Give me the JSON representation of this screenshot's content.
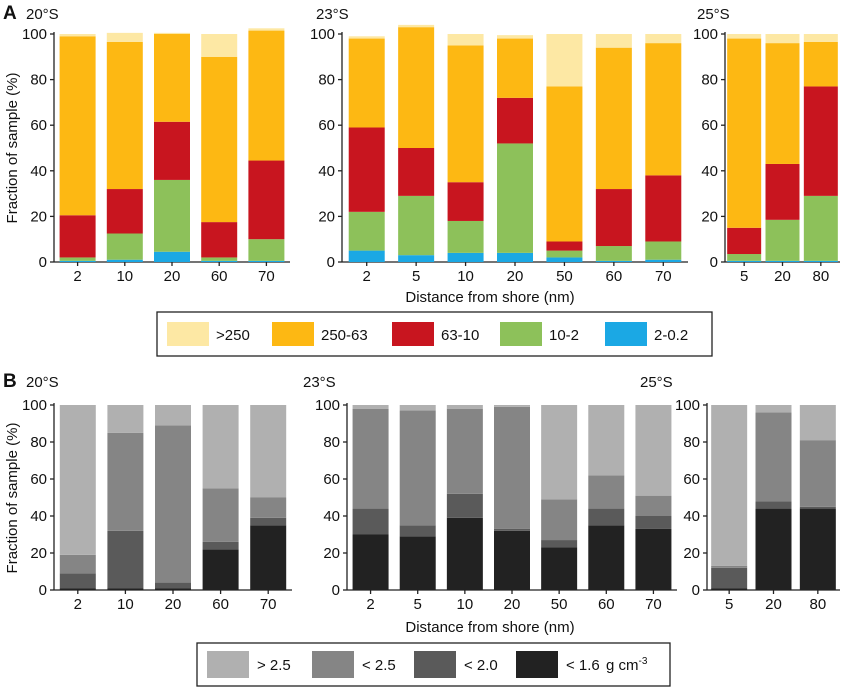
{
  "chart_data": [
    {
      "panel": "A",
      "type": "bar",
      "stacked": true,
      "ylabel": "Fraction of sample (%)",
      "xlabel": "Distance from shore (nm)",
      "ylim": [
        0,
        100
      ],
      "yticks": [
        "0",
        "20",
        "40",
        "60",
        "80",
        "100"
      ],
      "legend": [
        {
          "key": "s250p",
          "label": ">250",
          "color": "#FDE8A4"
        },
        {
          "key": "s250",
          "label": "250-63",
          "color": "#FDB813"
        },
        {
          "key": "s63",
          "label": "63-10",
          "color": "#C8151F"
        },
        {
          "key": "s10",
          "label": "10-2",
          "color": "#8DC15A"
        },
        {
          "key": "s2",
          "label": "2-0.2",
          "color": "#1BA8E4"
        }
      ],
      "subplots": [
        {
          "title": "20°S",
          "categories": [
            "2",
            "10",
            "20",
            "60",
            "70"
          ],
          "series": [
            {
              "name": "2-0.2",
              "values": [
                0.5,
                1,
                4.5,
                0.5,
                0.5
              ]
            },
            {
              "name": "10-2",
              "values": [
                1.5,
                11.5,
                31.5,
                1.5,
                9.5
              ]
            },
            {
              "name": "63-10",
              "values": [
                18.5,
                19.5,
                25.5,
                15.5,
                34.5
              ]
            },
            {
              "name": "250-63",
              "values": [
                78.5,
                64.5,
                38.5,
                72.5,
                57
              ]
            },
            {
              "name": ">250",
              "values": [
                1,
                4,
                0.5,
                10,
                1
              ]
            }
          ]
        },
        {
          "title": "23°S",
          "categories": [
            "2",
            "5",
            "10",
            "20",
            "50",
            "60",
            "70"
          ],
          "series": [
            {
              "name": "2-0.2",
              "values": [
                5,
                3,
                4,
                4,
                2,
                0.5,
                1
              ]
            },
            {
              "name": "10-2",
              "values": [
                17,
                26,
                14,
                48,
                3,
                6.5,
                8
              ]
            },
            {
              "name": "63-10",
              "values": [
                37,
                21,
                17,
                20,
                4,
                25,
                29
              ]
            },
            {
              "name": "250-63",
              "values": [
                39,
                53,
                60,
                26,
                68,
                62,
                58
              ]
            },
            {
              "name": ">250",
              "values": [
                1,
                1,
                5,
                1.5,
                23,
                6,
                4
              ]
            }
          ]
        },
        {
          "title": "25°S",
          "categories": [
            "5",
            "20",
            "80"
          ],
          "series": [
            {
              "name": "2-0.2",
              "values": [
                0.5,
                0.5,
                0.5
              ]
            },
            {
              "name": "10-2",
              "values": [
                3,
                18,
                28.5
              ]
            },
            {
              "name": "63-10",
              "values": [
                11.5,
                24.5,
                48
              ]
            },
            {
              "name": "250-63",
              "values": [
                83,
                53,
                19.5
              ]
            },
            {
              "name": ">250",
              "values": [
                2,
                4,
                3.5
              ]
            }
          ]
        }
      ]
    },
    {
      "panel": "B",
      "type": "bar",
      "stacked": true,
      "ylabel": "Fraction of sample (%)",
      "xlabel": "Distance from shore (nm)",
      "ylim": [
        0,
        100
      ],
      "yticks": [
        "0",
        "20",
        "40",
        "60",
        "80",
        "100"
      ],
      "legend": [
        {
          "key": "d25p",
          "label": "> 2.5",
          "color": "#B0B0B0"
        },
        {
          "key": "d25",
          "label": "< 2.5",
          "color": "#858585"
        },
        {
          "key": "d20",
          "label": "< 2.0",
          "color": "#5A5A5A"
        },
        {
          "key": "d16",
          "label": "< 1.6",
          "color": "#222222"
        }
      ],
      "legend_unit": "g cm",
      "legend_unit_exp": "-3",
      "subplots": [
        {
          "title": "20°S",
          "categories": [
            "2",
            "10",
            "20",
            "60",
            "70"
          ],
          "series": [
            {
              "name": "< 1.6",
              "values": [
                1,
                1,
                1,
                22,
                35
              ]
            },
            {
              "name": "< 2.0",
              "values": [
                8,
                31,
                3,
                4,
                4
              ]
            },
            {
              "name": "< 2.5",
              "values": [
                10,
                53,
                85,
                29,
                11
              ]
            },
            {
              "name": "> 2.5",
              "values": [
                81,
                15,
                11,
                45,
                50
              ]
            }
          ]
        },
        {
          "title": "23°S",
          "categories": [
            "2",
            "5",
            "10",
            "20",
            "50",
            "60",
            "70"
          ],
          "series": [
            {
              "name": "< 1.6",
              "values": [
                30,
                29,
                39,
                32,
                23,
                35,
                33
              ]
            },
            {
              "name": "< 2.0",
              "values": [
                14,
                6,
                13,
                1,
                4,
                9,
                7
              ]
            },
            {
              "name": "< 2.5",
              "values": [
                54,
                62,
                46,
                66,
                22,
                18,
                11
              ]
            },
            {
              "name": "> 2.5",
              "values": [
                2,
                3,
                2,
                1,
                51,
                38,
                49
              ]
            }
          ]
        },
        {
          "title": "25°S",
          "categories": [
            "5",
            "20",
            "80"
          ],
          "series": [
            {
              "name": "< 1.6",
              "values": [
                1,
                44,
                44
              ]
            },
            {
              "name": "< 2.0",
              "values": [
                11,
                4,
                1
              ]
            },
            {
              "name": "< 2.5",
              "values": [
                1,
                48,
                36
              ]
            },
            {
              "name": "> 2.5",
              "values": [
                87,
                4,
                19
              ]
            }
          ]
        }
      ]
    }
  ]
}
